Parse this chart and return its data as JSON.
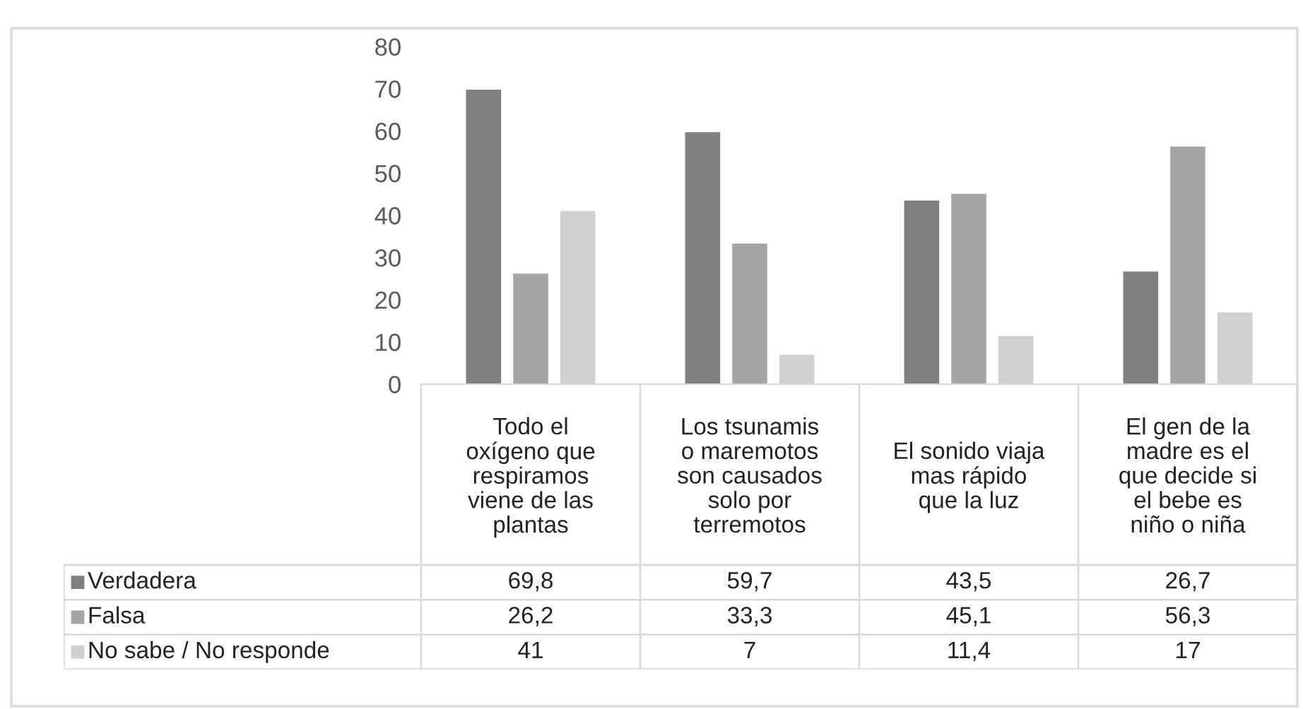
{
  "chart_data": {
    "type": "bar",
    "categories": [
      "Todo el\noxígeno que\nrespiramos\nviene de las\nplantas",
      "Los tsunamis\no maremotos\nson causados\nsolo por\nterremotos",
      "El sonido viaja\nmas rápido\nque la luz",
      "El gen de la\nmadre es el\nque decide si\nel bebe es\nniño o niña"
    ],
    "series": [
      {
        "name": "Verdadera",
        "color": "#7f7f7f",
        "values": [
          69.8,
          59.7,
          43.5,
          26.7
        ],
        "value_labels": [
          "69,8",
          "59,7",
          "43,5",
          "26,7"
        ]
      },
      {
        "name": "Falsa",
        "color": "#a5a5a5",
        "values": [
          26.2,
          33.3,
          45.1,
          56.3
        ],
        "value_labels": [
          "26,2",
          "33,3",
          "45,1",
          "56,3"
        ]
      },
      {
        "name": "No sabe / No responde",
        "color": "#d0d0d0",
        "values": [
          41,
          7,
          11.4,
          17
        ],
        "value_labels": [
          "41",
          "7",
          "11,4",
          "17"
        ]
      }
    ],
    "ylim": [
      0,
      80
    ],
    "yticks": [
      0,
      10,
      20,
      30,
      40,
      50,
      60,
      70,
      80
    ],
    "legend": "bottom left"
  }
}
